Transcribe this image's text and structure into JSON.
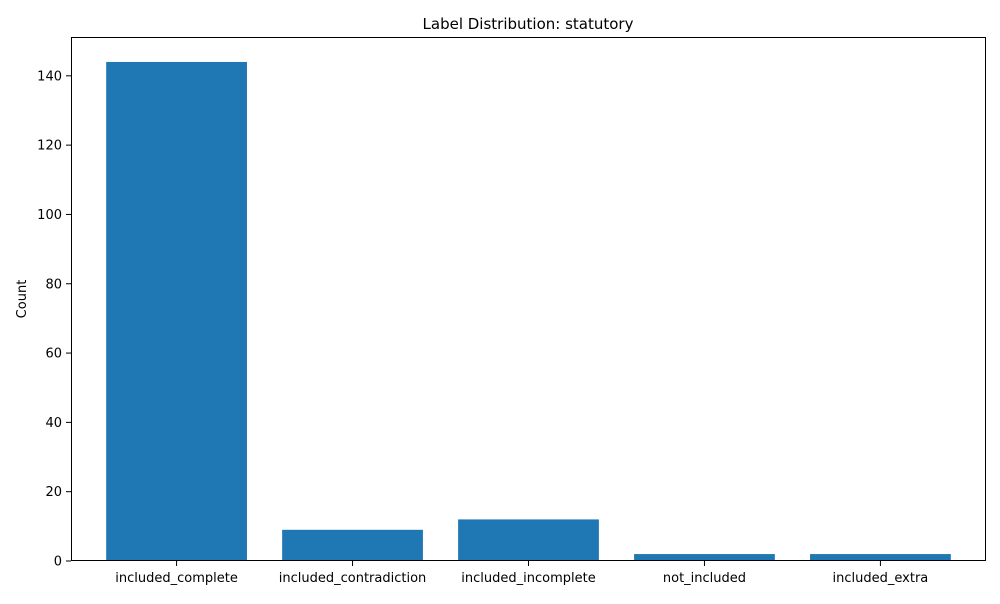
{
  "chart_data": {
    "type": "bar",
    "title": "Label Distribution: statutory",
    "xlabel": "",
    "ylabel": "Count",
    "categories": [
      "included_complete",
      "included_contradiction",
      "included_incomplete",
      "not_included",
      "included_extra"
    ],
    "values": [
      144,
      9,
      12,
      2,
      2
    ],
    "ylim": [
      0,
      151.2
    ],
    "yticks": [
      0,
      20,
      40,
      60,
      80,
      100,
      120,
      140
    ],
    "bar_color": "#1f77b4",
    "grid": false,
    "legend": "none"
  }
}
